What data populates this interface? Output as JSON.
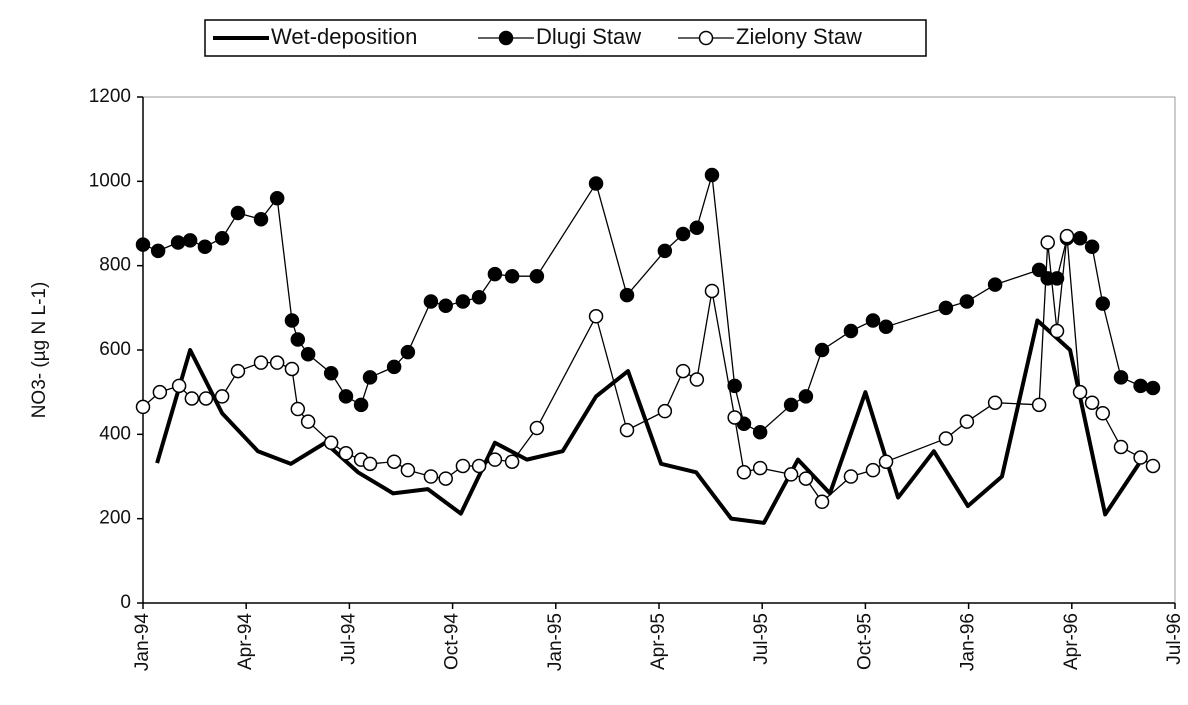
{
  "chart_data": {
    "type": "line",
    "y_label": "NO3- (µg N L-1)",
    "legend": "top",
    "xlim": [
      0,
      30
    ],
    "xticks": [
      {
        "value": 0,
        "label": "Jan-94"
      },
      {
        "value": 3,
        "label": "Apr-94"
      },
      {
        "value": 6,
        "label": "Jul-94"
      },
      {
        "value": 9,
        "label": "Oct-94"
      },
      {
        "value": 12,
        "label": "Jan-95"
      },
      {
        "value": 15,
        "label": "Apr-95"
      },
      {
        "value": 18,
        "label": "Jul-95"
      },
      {
        "value": 21,
        "label": "Oct-95"
      },
      {
        "value": 24,
        "label": "Jan-96"
      },
      {
        "value": 27,
        "label": "Apr-96"
      },
      {
        "value": 30,
        "label": "Jul-96"
      }
    ],
    "ylim": [
      0,
      1200
    ],
    "yticks": [
      0,
      200,
      400,
      600,
      800,
      1000,
      1200
    ],
    "series": [
      {
        "name": "Wet-deposition",
        "color": "#000000",
        "line_width": 4,
        "marker": "none",
        "x": [
          0.41,
          1.37,
          2.3,
          3.34,
          4.3,
          5.3,
          6.25,
          7.27,
          8.28,
          9.24,
          10.23,
          11.16,
          12.2,
          13.17,
          14.1,
          15.06,
          16.08,
          17.1,
          18.05,
          19.04,
          19.97,
          21.0,
          21.95,
          22.99,
          23.98,
          24.97,
          26.0,
          26.95,
          27.97,
          28.95
        ],
        "values": [
          332,
          600,
          450,
          360,
          330,
          380,
          310,
          260,
          270,
          212,
          380,
          340,
          360,
          490,
          550,
          330,
          310,
          200,
          190,
          340,
          260,
          500,
          250,
          360,
          230,
          300,
          670,
          600,
          210,
          330
        ]
      },
      {
        "name": "Dlugi Staw",
        "color": "#000000",
        "line_width": 1.3,
        "marker": "filled",
        "x": [
          0.0,
          0.44,
          1.02,
          1.37,
          1.8,
          2.3,
          2.76,
          3.43,
          3.9,
          4.33,
          4.5,
          4.8,
          5.47,
          5.9,
          6.34,
          6.6,
          7.3,
          7.7,
          8.37,
          8.8,
          9.3,
          9.77,
          10.23,
          10.73,
          11.45,
          13.17,
          14.07,
          15.17,
          15.7,
          16.1,
          16.54,
          17.2,
          17.47,
          17.94,
          18.84,
          19.27,
          19.74,
          20.58,
          21.22,
          21.6,
          23.34,
          23.95,
          24.77,
          26.05,
          26.3,
          26.57,
          26.86,
          27.24,
          27.59,
          27.9,
          28.43,
          29.0,
          29.36
        ],
        "values": [
          850,
          835,
          855,
          860,
          845,
          865,
          925,
          910,
          960,
          670,
          625,
          590,
          545,
          490,
          470,
          535,
          560,
          595,
          715,
          705,
          715,
          725,
          780,
          775,
          775,
          995,
          730,
          835,
          875,
          890,
          1015,
          515,
          425,
          405,
          470,
          490,
          600,
          645,
          670,
          655,
          700,
          715,
          755,
          790,
          770,
          770,
          865,
          865,
          845,
          710,
          535,
          515,
          510
        ]
      },
      {
        "name": "Zielony Staw",
        "color": "#000000",
        "line_width": 1.3,
        "marker": "open",
        "x": [
          0.0,
          0.49,
          1.05,
          1.42,
          1.83,
          2.3,
          2.76,
          3.43,
          3.9,
          4.33,
          4.5,
          4.8,
          5.47,
          5.9,
          6.34,
          6.6,
          7.3,
          7.7,
          8.37,
          8.8,
          9.3,
          9.77,
          10.23,
          10.73,
          11.45,
          13.17,
          14.07,
          15.17,
          15.7,
          16.1,
          16.54,
          17.2,
          17.47,
          17.94,
          18.84,
          19.27,
          19.74,
          20.58,
          21.22,
          21.6,
          23.34,
          23.95,
          24.77,
          26.05,
          26.3,
          26.57,
          26.86,
          27.24,
          27.59,
          27.9,
          28.43,
          29.0,
          29.36
        ],
        "values": [
          465,
          500,
          515,
          485,
          485,
          490,
          550,
          570,
          570,
          555,
          460,
          430,
          380,
          355,
          340,
          330,
          335,
          315,
          300,
          295,
          325,
          325,
          340,
          335,
          415,
          680,
          410,
          455,
          550,
          530,
          740,
          440,
          310,
          320,
          305,
          295,
          240,
          300,
          315,
          335,
          390,
          430,
          475,
          470,
          855,
          645,
          870,
          500,
          475,
          450,
          370,
          345,
          325
        ]
      }
    ]
  }
}
